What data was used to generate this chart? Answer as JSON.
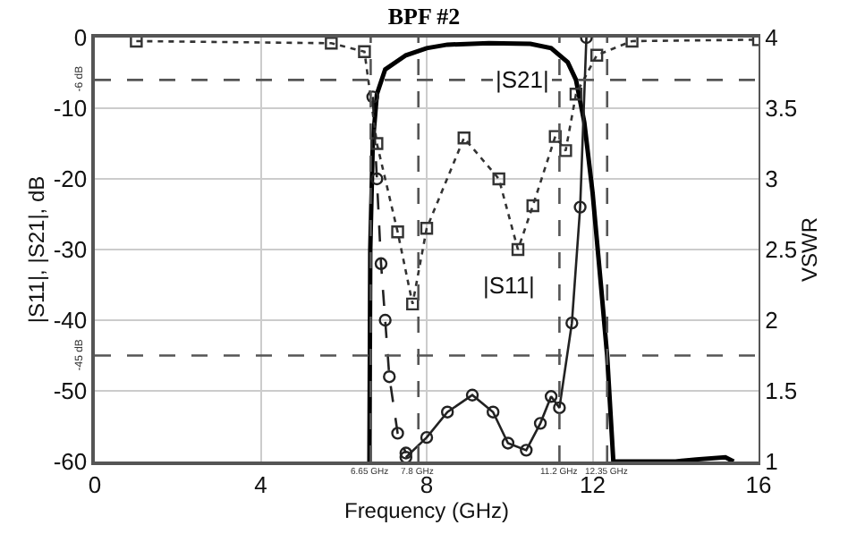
{
  "chart_data": {
    "type": "line",
    "title": "BPF #2",
    "xlabel": "Frequency (GHz)",
    "ylabel": "|S11|, |S21|, dB",
    "y2label": "VSWR",
    "xlim": [
      0,
      16
    ],
    "xticks": [
      0,
      4,
      8,
      12,
      16
    ],
    "ylim": [
      -60,
      0
    ],
    "yticks": [
      -60,
      -50,
      -40,
      -30,
      -20,
      -10,
      0
    ],
    "y2lim": [
      1,
      4
    ],
    "y2ticks": [
      1,
      1.5,
      2,
      2.5,
      3,
      3.5,
      4
    ],
    "grid": true,
    "x": [
      6.62,
      6.64,
      6.7,
      6.8,
      7.0,
      7.5,
      8.0,
      8.5,
      9.5,
      10.5,
      11.0,
      11.4,
      11.6,
      11.8,
      12.0,
      12.2,
      12.35,
      12.5,
      14.0,
      14.5,
      15.2,
      15.4
    ],
    "series": [
      {
        "color": "#000000",
        "line_style": "solid",
        "marker": "none",
        "values": [
          -60,
          -30,
          -15,
          -8,
          -4.5,
          -2.5,
          -1.5,
          -1.0,
          -0.8,
          -0.9,
          -1.5,
          -3.5,
          -6,
          -12,
          -22,
          -35,
          -45,
          -60,
          -60,
          -59.7,
          -59.4,
          -60
        ]
      },
      {
        "color": "#333333",
        "line_style": "dotted",
        "marker": "square",
        "x": [
          1.0,
          5.7,
          6.5,
          6.8,
          7.3,
          7.66,
          8.0,
          8.9,
          9.74,
          10.2,
          10.56,
          11.1,
          11.35,
          11.6,
          12.1,
          12.95,
          16
        ],
        "values": [
          -0.5,
          -0.8,
          -2,
          -15,
          -27.5,
          -37.7,
          -27,
          -14.2,
          -20,
          -30,
          -23.8,
          -14,
          -16,
          -8,
          -2.5,
          -0.5,
          -0.3
        ]
      },
      {
        "color": "#222222",
        "line_style": "dashed",
        "marker": "circle",
        "axis": "y2",
        "x": [
          6.7,
          6.8,
          6.9,
          7.0,
          7.1,
          7.3,
          7.5
        ],
        "values": [
          3.58,
          3.0,
          2.4,
          2.0,
          1.6,
          1.2,
          1.06
        ]
      },
      {
        "color": "#222222",
        "line_style": "solid",
        "marker": "circle",
        "axis": "y2",
        "x": [
          7.5,
          8.0,
          8.5,
          9.1,
          9.6,
          9.96,
          10.4,
          10.74,
          11.0,
          11.2,
          11.5,
          11.7,
          11.85
        ],
        "values": [
          1.03,
          1.17,
          1.35,
          1.47,
          1.35,
          1.13,
          1.08,
          1.27,
          1.46,
          1.38,
          1.98,
          2.8,
          4.0
        ]
      }
    ],
    "ref_lines": [
      {
        "axis": "x",
        "value": 6.65,
        "label": "6.65 GHz",
        "line_style": "dashed"
      },
      {
        "axis": "x",
        "value": 7.8,
        "label": "7.8 GHz",
        "line_style": "dashed"
      },
      {
        "axis": "x",
        "value": 11.2,
        "label": "11.2 GHz",
        "line_style": "dashed"
      },
      {
        "axis": "x",
        "value": 12.35,
        "label": "12.35 GHz",
        "line_style": "dashed"
      },
      {
        "axis": "y",
        "value": -6,
        "label": "-6 dB",
        "line_style": "dashed"
      },
      {
        "axis": "y",
        "value": -45,
        "label": "-45 dB",
        "line_style": "dashed"
      }
    ],
    "annotations": [
      {
        "text": "|S21|",
        "x": 10.3,
        "y": -6
      },
      {
        "text": "|S11|",
        "x": 10.0,
        "y": -35
      }
    ]
  }
}
